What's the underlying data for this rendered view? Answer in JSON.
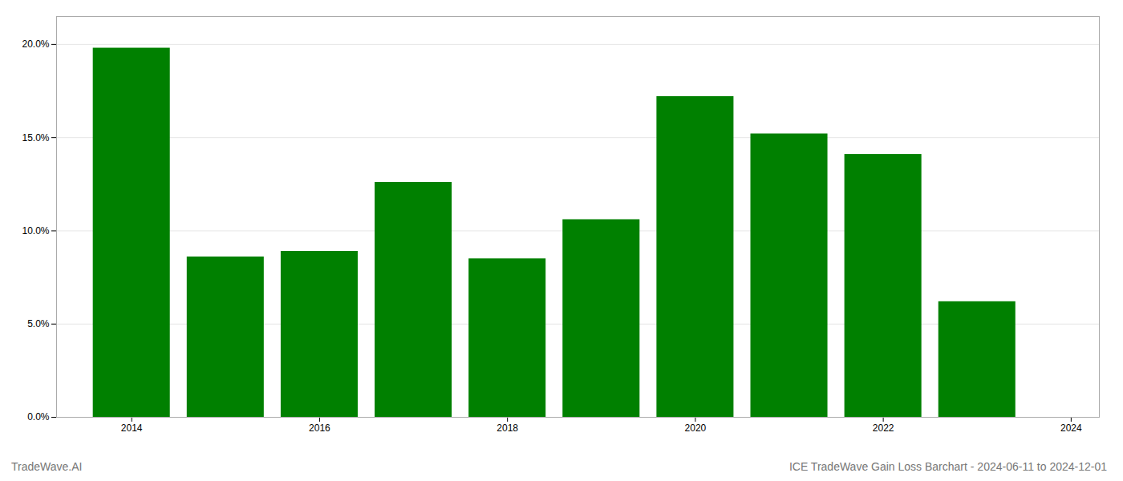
{
  "chart_data": {
    "type": "bar",
    "title": "ICE TradeWave Gain Loss Barchart - 2024-06-11 to 2024-12-01",
    "annotations": [
      "TradeWave.AI"
    ],
    "x": [
      2014,
      2015,
      2016,
      2017,
      2018,
      2019,
      2020,
      2021,
      2022,
      2023
    ],
    "values": [
      0.198,
      0.086,
      0.089,
      0.126,
      0.085,
      0.106,
      0.172,
      0.152,
      0.141,
      0.062
    ],
    "color": "#008000",
    "xlim": [
      2013.2,
      2024.3
    ],
    "xticks": [
      2014,
      2016,
      2018,
      2020,
      2022,
      2024
    ],
    "ylim": [
      0,
      0.215
    ],
    "yticks": [
      {
        "value": 0.0,
        "label": "0.0%"
      },
      {
        "value": 0.05,
        "label": "5.0%"
      },
      {
        "value": 0.1,
        "label": "10.0%"
      },
      {
        "value": 0.15,
        "label": "15.0%"
      },
      {
        "value": 0.2,
        "label": "20.0%"
      }
    ],
    "grid": true
  }
}
